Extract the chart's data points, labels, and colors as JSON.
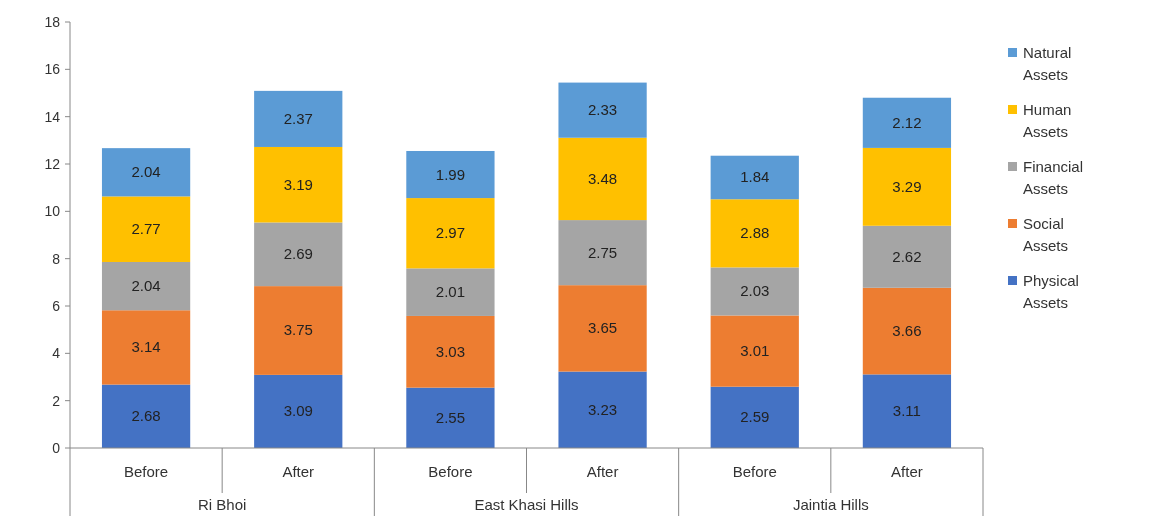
{
  "chart_data": {
    "type": "bar",
    "stacked": true,
    "categories": [
      "Before",
      "After",
      "Before",
      "After",
      "Before",
      "After"
    ],
    "annotations": [
      "Ri Bhoi",
      "East Khasi Hills",
      "Jaintia Hills"
    ],
    "series": [
      {
        "name": "Physical Assets",
        "color": "#4472c4",
        "values": [
          2.68,
          3.09,
          2.55,
          3.23,
          2.59,
          3.11
        ]
      },
      {
        "name": "Social Assets",
        "color": "#ed7d31",
        "values": [
          3.14,
          3.75,
          3.03,
          3.65,
          3.01,
          3.66
        ]
      },
      {
        "name": "Financial Assets",
        "color": "#a5a5a5",
        "values": [
          2.04,
          2.69,
          2.01,
          2.75,
          2.03,
          2.62
        ]
      },
      {
        "name": "Human Assets",
        "color": "#ffc000",
        "values": [
          2.77,
          3.19,
          2.97,
          3.48,
          2.88,
          3.29
        ]
      },
      {
        "name": "Natural Assets",
        "color": "#5b9bd5",
        "values": [
          2.04,
          2.37,
          1.99,
          2.33,
          1.84,
          2.12
        ]
      }
    ],
    "ylim": [
      0,
      18
    ],
    "yticks": [
      0,
      2,
      4,
      6,
      8,
      10,
      12,
      14,
      16,
      18
    ],
    "data_labels": true,
    "legend": "right",
    "grid": false
  }
}
